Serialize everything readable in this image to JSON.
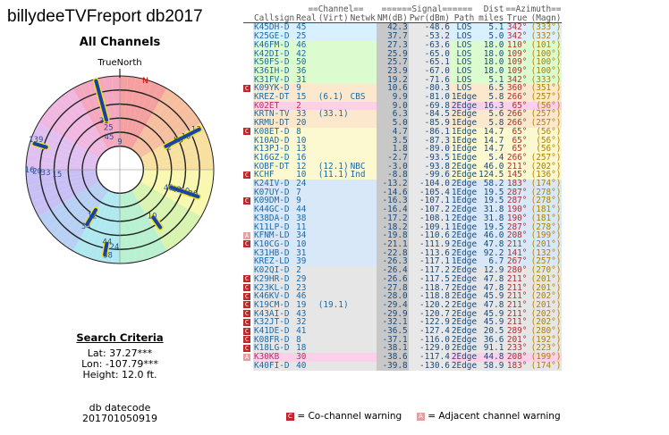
{
  "title": "billydeeTVFreport db2017",
  "subtitle": "All Channels",
  "compass": {
    "north_label": "TrueNorth",
    "n_mark": "N"
  },
  "criteria": {
    "header": "Search Criteria",
    "lat": "Lat: 37.27***",
    "lon": "Lon: -107.79***",
    "height": "Height: 12.0 ft."
  },
  "dbdate": {
    "label": "db datecode",
    "value": "201701050919"
  },
  "table": {
    "groups": {
      "channel": "==Channel==",
      "signal": "======Signal======",
      "dist": "Dist",
      "azimuth": "==Azimuth=="
    },
    "headers": [
      "Callsign",
      "Real",
      "(Virt)",
      "Netwk",
      "NM(dB)",
      "Pwr(dBm)",
      "Path",
      "miles",
      "True",
      "(Magn)"
    ],
    "rows": [
      {
        "flag": "",
        "call": "K45DH-D",
        "real": "45",
        "virt": "",
        "net": "",
        "nm": "42.3",
        "pwr": "-48.6",
        "path": "LOS",
        "dist": "5.1",
        "tr": "342°",
        "mg": "(333°)",
        "bg": "#d8f0ff"
      },
      {
        "flag": "",
        "call": "K25GE-D",
        "real": "25",
        "virt": "",
        "net": "",
        "nm": "37.7",
        "pwr": "-53.2",
        "path": "LOS",
        "dist": "5.0",
        "tr": "342°",
        "mg": "(332°)",
        "bg": "#d8f0ff"
      },
      {
        "flag": "",
        "call": "K46FM-D",
        "real": "46",
        "virt": "",
        "net": "",
        "nm": "27.3",
        "pwr": "-63.6",
        "path": "LOS",
        "dist": "18.0",
        "tr": "110°",
        "mg": "(101°)",
        "bg": "#dcfcd0"
      },
      {
        "flag": "",
        "call": "K42DI-D",
        "real": "42",
        "virt": "",
        "net": "",
        "nm": "25.9",
        "pwr": "-65.0",
        "path": "LOS",
        "dist": "18.0",
        "tr": "109°",
        "mg": "(100°)",
        "bg": "#dcfcd0"
      },
      {
        "flag": "",
        "call": "K50FS-D",
        "real": "50",
        "virt": "",
        "net": "",
        "nm": "25.7",
        "pwr": "-65.1",
        "path": "LOS",
        "dist": "18.0",
        "tr": "109°",
        "mg": "(100°)",
        "bg": "#dcfcd0"
      },
      {
        "flag": "",
        "call": "K36IH-D",
        "real": "36",
        "virt": "",
        "net": "",
        "nm": "23.9",
        "pwr": "-67.0",
        "path": "LOS",
        "dist": "18.0",
        "tr": "109°",
        "mg": "(100°)",
        "bg": "#dcfcd0"
      },
      {
        "flag": "",
        "call": "K31FV-D",
        "real": "31",
        "virt": "",
        "net": "",
        "nm": "19.2",
        "pwr": "-71.6",
        "path": "LOS",
        "dist": "5.1",
        "tr": "342°",
        "mg": "(333°)",
        "bg": "#dcfcd0"
      },
      {
        "flag": "C",
        "call": "K09YK-D",
        "real": "9",
        "virt": "",
        "net": "",
        "nm": "10.6",
        "pwr": "-80.3",
        "path": "LOS",
        "dist": "6.5",
        "tr": "360°",
        "mg": "(351°)",
        "bg": "#fce8cc"
      },
      {
        "flag": "",
        "call": "KREZ-DT",
        "real": "15",
        "virt": "(6.1)",
        "net": "CBS",
        "nm": "9.9",
        "pwr": "-81.0",
        "path": "1Edge",
        "dist": "5.8",
        "tr": "266°",
        "mg": "(257°)",
        "bg": "#fce8cc"
      },
      {
        "flag": "",
        "call": "K02ET",
        "real": "2",
        "virt": "",
        "net": "",
        "nm": "9.0",
        "pwr": "-69.8",
        "path": "2Edge",
        "dist": "16.3",
        "tr": "65°",
        "mg": "(56°)",
        "bg": "#fcd0e8"
      },
      {
        "flag": "",
        "call": "KRTN-TV",
        "real": "33",
        "virt": "(33.1)",
        "net": "",
        "nm": "6.3",
        "pwr": "-84.5",
        "path": "2Edge",
        "dist": "5.6",
        "tr": "266°",
        "mg": "(257°)",
        "bg": "#fce8cc"
      },
      {
        "flag": "",
        "call": "KRMU-DT",
        "real": "20",
        "virt": "",
        "net": "",
        "nm": "5.0",
        "pwr": "-85.9",
        "path": "1Edge",
        "dist": "5.8",
        "tr": "266°",
        "mg": "(257°)",
        "bg": "#fce8cc"
      },
      {
        "flag": "C",
        "call": "K08ET-D",
        "real": "8",
        "virt": "",
        "net": "",
        "nm": "4.7",
        "pwr": "-86.1",
        "path": "1Edge",
        "dist": "14.7",
        "tr": "65°",
        "mg": "(56°)",
        "bg": "#fcf8d0"
      },
      {
        "flag": "",
        "call": "K10AD-D",
        "real": "10",
        "virt": "",
        "net": "",
        "nm": "3.5",
        "pwr": "-87.3",
        "path": "1Edge",
        "dist": "14.7",
        "tr": "65°",
        "mg": "(56°)",
        "bg": "#fcf8d0"
      },
      {
        "flag": "",
        "call": "K13PJ-D",
        "real": "13",
        "virt": "",
        "net": "",
        "nm": "1.8",
        "pwr": "-89.0",
        "path": "1Edge",
        "dist": "14.7",
        "tr": "65°",
        "mg": "(56°)",
        "bg": "#fcf8d0"
      },
      {
        "flag": "",
        "call": "K16GZ-D",
        "real": "16",
        "virt": "",
        "net": "",
        "nm": "-2.7",
        "pwr": "-93.5",
        "path": "1Edge",
        "dist": "5.4",
        "tr": "266°",
        "mg": "(257°)",
        "bg": "#fcf8d0"
      },
      {
        "flag": "",
        "call": "KOBF-DT",
        "real": "12",
        "virt": "(12.1)",
        "net": "NBC",
        "nm": "-3.0",
        "pwr": "-93.8",
        "path": "2Edge",
        "dist": "46.0",
        "tr": "211°",
        "mg": "(202°)",
        "bg": "#fcf8d0"
      },
      {
        "flag": "C",
        "call": "KCHF",
        "real": "10",
        "virt": "(11.1)",
        "net": "Ind",
        "nm": "-8.8",
        "pwr": "-99.6",
        "path": "2Edge",
        "dist": "124.5",
        "tr": "145°",
        "mg": "(136°)",
        "bg": "#fcf8d0"
      },
      {
        "flag": "",
        "call": "K24IV-D",
        "real": "24",
        "virt": "",
        "net": "",
        "nm": "-13.2",
        "pwr": "-104.0",
        "path": "2Edge",
        "dist": "58.2",
        "tr": "183°",
        "mg": "(174°)",
        "bg": "#d8e8f8"
      },
      {
        "flag": "",
        "call": "K07UY-D",
        "real": "7",
        "virt": "",
        "net": "",
        "nm": "-14.6",
        "pwr": "-105.4",
        "path": "1Edge",
        "dist": "19.5",
        "tr": "287°",
        "mg": "(278°)",
        "bg": "#d8e8f8"
      },
      {
        "flag": "C",
        "call": "K09DM-D",
        "real": "9",
        "virt": "",
        "net": "",
        "nm": "-16.3",
        "pwr": "-107.1",
        "path": "1Edge",
        "dist": "19.5",
        "tr": "287°",
        "mg": "(278°)",
        "bg": "#d8e8f8"
      },
      {
        "flag": "",
        "call": "K44GC-D",
        "real": "44",
        "virt": "",
        "net": "",
        "nm": "-16.4",
        "pwr": "-107.2",
        "path": "2Edge",
        "dist": "31.8",
        "tr": "190°",
        "mg": "(181°)",
        "bg": "#d8e8f8"
      },
      {
        "flag": "",
        "call": "K38DA-D",
        "real": "38",
        "virt": "",
        "net": "",
        "nm": "-17.2",
        "pwr": "-108.1",
        "path": "2Edge",
        "dist": "31.8",
        "tr": "190°",
        "mg": "(181°)",
        "bg": "#d8e8f8"
      },
      {
        "flag": "",
        "call": "K11LP-D",
        "real": "11",
        "virt": "",
        "net": "",
        "nm": "-18.2",
        "pwr": "-109.1",
        "path": "1Edge",
        "dist": "19.5",
        "tr": "287°",
        "mg": "(278°)",
        "bg": "#d8e8f8"
      },
      {
        "flag": "A",
        "call": "KFNM-LD",
        "real": "34",
        "virt": "",
        "net": "",
        "nm": "-19.8",
        "pwr": "-110.6",
        "path": "2Edge",
        "dist": "46.0",
        "tr": "208°",
        "mg": "(199°)",
        "bg": "#d8e8f8"
      },
      {
        "flag": "C",
        "call": "K10CG-D",
        "real": "10",
        "virt": "",
        "net": "",
        "nm": "-21.1",
        "pwr": "-111.9",
        "path": "2Edge",
        "dist": "47.8",
        "tr": "211°",
        "mg": "(201°)",
        "bg": "#d8e8f8"
      },
      {
        "flag": "",
        "call": "K31HB-D",
        "real": "31",
        "virt": "",
        "net": "",
        "nm": "-22.8",
        "pwr": "-113.6",
        "path": "2Edge",
        "dist": "92.2",
        "tr": "141°",
        "mg": "(132°)",
        "bg": "#d8e8f8"
      },
      {
        "flag": "",
        "call": "KREZ-LD",
        "real": "39",
        "virt": "",
        "net": "",
        "nm": "-26.3",
        "pwr": "-117.1",
        "path": "1Edge",
        "dist": "6.7",
        "tr": "267°",
        "mg": "(257°)",
        "bg": "#d8e8f8"
      },
      {
        "flag": "",
        "call": "K02QI-D",
        "real": "2",
        "virt": "",
        "net": "",
        "nm": "-26.4",
        "pwr": "-117.2",
        "path": "2Edge",
        "dist": "12.9",
        "tr": "280°",
        "mg": "(270°)",
        "bg": "#e6e6e6"
      },
      {
        "flag": "C",
        "call": "K29HR-D",
        "real": "29",
        "virt": "",
        "net": "",
        "nm": "-26.6",
        "pwr": "-117.5",
        "path": "2Edge",
        "dist": "47.8",
        "tr": "211°",
        "mg": "(201°)",
        "bg": "#e6e6e6"
      },
      {
        "flag": "C",
        "call": "K23KL-D",
        "real": "23",
        "virt": "",
        "net": "",
        "nm": "-27.8",
        "pwr": "-118.7",
        "path": "2Edge",
        "dist": "47.8",
        "tr": "211°",
        "mg": "(201°)",
        "bg": "#e6e6e6"
      },
      {
        "flag": "C",
        "call": "K46KV-D",
        "real": "46",
        "virt": "",
        "net": "",
        "nm": "-28.0",
        "pwr": "-118.8",
        "path": "2Edge",
        "dist": "45.9",
        "tr": "211°",
        "mg": "(202°)",
        "bg": "#e6e6e6"
      },
      {
        "flag": "C",
        "call": "K19CM-D",
        "real": "19",
        "virt": "(19.1)",
        "net": "",
        "nm": "-29.4",
        "pwr": "-120.2",
        "path": "2Edge",
        "dist": "47.8",
        "tr": "211°",
        "mg": "(201°)",
        "bg": "#e6e6e6"
      },
      {
        "flag": "C",
        "call": "K43AI-D",
        "real": "43",
        "virt": "",
        "net": "",
        "nm": "-29.9",
        "pwr": "-120.7",
        "path": "2Edge",
        "dist": "45.9",
        "tr": "211°",
        "mg": "(202°)",
        "bg": "#e6e6e6"
      },
      {
        "flag": "C",
        "call": "K32JT-D",
        "real": "32",
        "virt": "",
        "net": "",
        "nm": "-32.1",
        "pwr": "-122.9",
        "path": "2Edge",
        "dist": "45.9",
        "tr": "211°",
        "mg": "(202°)",
        "bg": "#e6e6e6"
      },
      {
        "flag": "C",
        "call": "K41DE-D",
        "real": "41",
        "virt": "",
        "net": "",
        "nm": "-36.5",
        "pwr": "-127.4",
        "path": "2Edge",
        "dist": "20.5",
        "tr": "289°",
        "mg": "(280°)",
        "bg": "#e6e6e6"
      },
      {
        "flag": "C",
        "call": "K08FR-D",
        "real": "8",
        "virt": "",
        "net": "",
        "nm": "-37.1",
        "pwr": "-116.0",
        "path": "2Edge",
        "dist": "36.6",
        "tr": "201°",
        "mg": "(192°)",
        "bg": "#e6e6e6"
      },
      {
        "flag": "C",
        "call": "K18LG-D",
        "real": "18",
        "virt": "",
        "net": "",
        "nm": "-38.1",
        "pwr": "-129.0",
        "path": "2Edge",
        "dist": "91.1",
        "tr": "233°",
        "mg": "(223°)",
        "bg": "#e6e6e6"
      },
      {
        "flag": "A",
        "call": "K30KB",
        "real": "30",
        "virt": "",
        "net": "",
        "nm": "-38.6",
        "pwr": "-117.4",
        "path": "2Edge",
        "dist": "44.8",
        "tr": "208°",
        "mg": "(199°)",
        "bg": "#fcd0e8"
      },
      {
        "flag": "",
        "call": "K40FI-D",
        "real": "40",
        "virt": "",
        "net": "",
        "nm": "-39.8",
        "pwr": "-130.6",
        "path": "2Edge",
        "dist": "58.9",
        "tr": "183°",
        "mg": "(174°)",
        "bg": "#e6e6e6"
      }
    ]
  },
  "legend": {
    "co_symbol": "C",
    "co_text": "= Co-channel warning",
    "adj_symbol": "A",
    "adj_text": "= Adjacent channel warning"
  },
  "colors": {
    "callsign": "#1a6aa8",
    "real": "#1a6aa8",
    "true_az": "#b03030",
    "magn_az": "#b08000",
    "warn": "#c0292c",
    "adj": "#e2a0a0",
    "red_callsign": "#c02a6a"
  },
  "radar": {
    "center_label_ticks": [
      {
        "label": "9",
        "az": 0,
        "r": 0.3
      },
      {
        "label": "31",
        "az": 342,
        "r": 0.55
      },
      {
        "label": "25",
        "az": 345,
        "r": 0.47
      },
      {
        "label": "45",
        "az": 342,
        "r": 0.37
      },
      {
        "label": "2",
        "az": 65,
        "r": 0.58
      },
      {
        "label": "K8",
        "az": 63,
        "r": 0.7
      },
      {
        "label": "10",
        "az": 63,
        "r": 0.79
      },
      {
        "label": "13",
        "az": 62,
        "r": 0.92
      },
      {
        "label": "139",
        "az": 290,
        "r": 0.95
      },
      {
        "label": "7",
        "az": 286,
        "r": 0.84
      },
      {
        "label": "16",
        "az": 270,
        "r": 0.96
      },
      {
        "label": "20",
        "az": 269,
        "r": 0.88
      },
      {
        "label": "33",
        "az": 268,
        "r": 0.79
      },
      {
        "label": "15",
        "az": 266,
        "r": 0.67
      },
      {
        "label": "46",
        "az": 110,
        "r": 0.55
      },
      {
        "label": "42",
        "az": 109,
        "r": 0.64
      },
      {
        "label": "50",
        "az": 108,
        "r": 0.73
      },
      {
        "label": "36",
        "az": 108,
        "r": 0.82
      },
      {
        "label": "10",
        "az": 145,
        "r": 0.6
      },
      {
        "label": "12",
        "az": 211,
        "r": 0.57
      },
      {
        "label": "34",
        "az": 211,
        "r": 0.7
      },
      {
        "label": "44",
        "az": 190,
        "r": 0.78
      },
      {
        "label": "24",
        "az": 184,
        "r": 0.82
      },
      {
        "label": "38",
        "az": 188,
        "r": 0.92
      }
    ]
  }
}
